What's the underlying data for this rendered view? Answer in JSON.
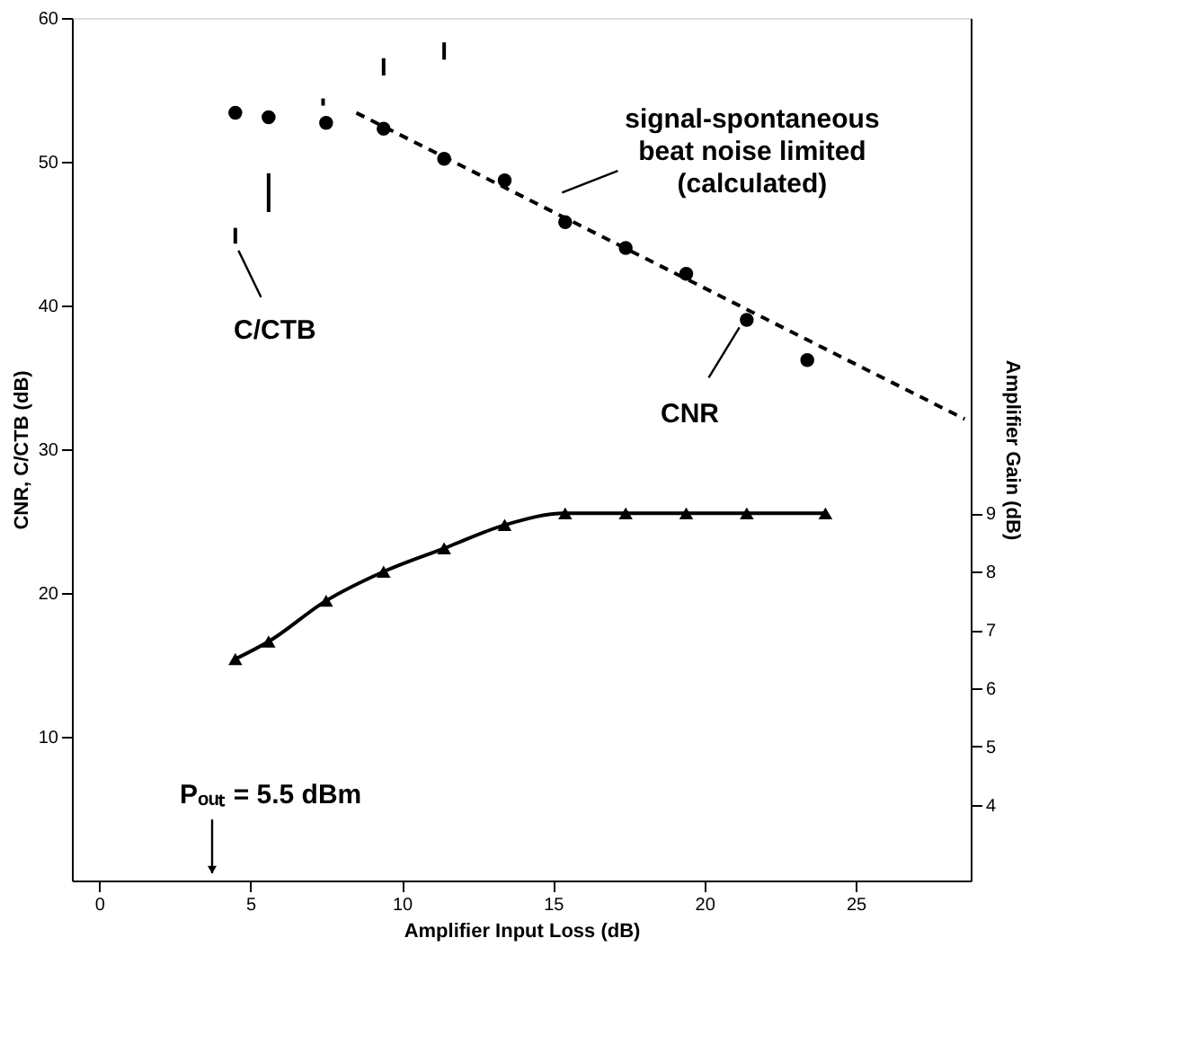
{
  "chart_data": {
    "type": "scatter",
    "xlabel": "Amplifier Input Loss (dB)",
    "ylabel": "CNR, C/CTB (dB)",
    "y2label": "Amplifier Gain (dB)",
    "xlim": [
      -0.9,
      28.8
    ],
    "xticks": [
      0,
      5,
      10,
      15,
      20,
      25
    ],
    "ylim": [
      0,
      60
    ],
    "yticks": [
      10,
      20,
      30,
      40,
      50,
      60
    ],
    "y2lim": [
      2.7,
      17.5
    ],
    "y2ticks": [
      4,
      5,
      6,
      7,
      8,
      9
    ],
    "series": [
      {
        "marker": "circle",
        "color": "#000000",
        "x": [
          4.5,
          5.6,
          7.5,
          9.4,
          11.4,
          13.4,
          15.4,
          17.4,
          19.4,
          21.4,
          23.4
        ],
        "values": [
          53.4,
          53.1,
          52.7,
          52.3,
          50.2,
          48.7,
          45.8,
          44.0,
          42.2,
          39.0,
          36.2
        ]
      },
      {
        "type": "bar",
        "color": "#000000",
        "x": [
          4.5,
          5.6,
          7.4,
          9.4,
          11.4
        ],
        "base": [
          44.3,
          46.5,
          53.9,
          56.0,
          57.1
        ],
        "values": [
          1.1,
          2.7,
          0.5,
          1.2,
          1.2
        ]
      },
      {
        "type": "line",
        "line_style": "dashed",
        "marker": "none",
        "color": "#000000",
        "x": [
          8.5,
          28.6
        ],
        "values": [
          53.4,
          32.1
        ]
      },
      {
        "type": "line",
        "axis": "y2",
        "marker": "triangle",
        "line_style": "solid",
        "color": "#000000",
        "x": [
          4.5,
          5.6,
          7.5,
          9.4,
          11.4,
          13.4,
          15.4,
          17.4,
          19.4,
          21.4,
          24.0
        ],
        "values": [
          6.5,
          6.8,
          7.5,
          8.0,
          8.4,
          8.8,
          9.0,
          9.0,
          9.0,
          9.0,
          9.0
        ]
      }
    ],
    "annotations": [
      {
        "text": "C/CTB",
        "x": 4.5,
        "y": 44.3
      },
      {
        "text": "signal-spontaneous\nbeat noise limited\n(calculated)",
        "x": 14.75,
        "y": 47.4
      },
      {
        "text": "CNR",
        "x": 21.3,
        "y": 39.0
      },
      "Pₒᵤₜ = 5.5 dBm"
    ]
  }
}
